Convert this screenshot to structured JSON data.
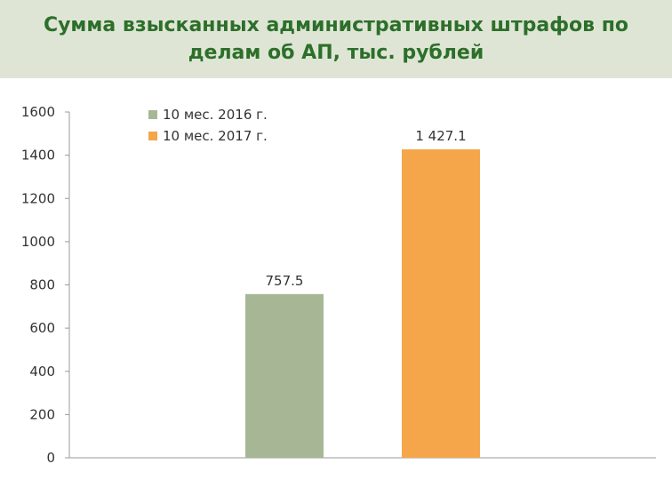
{
  "chart_data": {
    "type": "bar",
    "title_lines": [
      "Сумма взысканных административных штрафов по",
      "делам об АП, тыс. рублей"
    ],
    "categories": [
      ""
    ],
    "series": [
      {
        "name": "10 мес. 2016 г.",
        "values": [
          757.5
        ],
        "label": "757.5",
        "color": "#a7b796"
      },
      {
        "name": "10 мес. 2017 г.",
        "values": [
          1427.1
        ],
        "label": "1 427.1",
        "color": "#f5a54a"
      }
    ],
    "y_ticks": [
      "0",
      "200",
      "400",
      "600",
      "800",
      "1000",
      "1200",
      "1400",
      "1600"
    ],
    "ylim": [
      0,
      1600
    ],
    "xlabel": "",
    "ylabel": "",
    "grid": false,
    "legend_position": "top-left"
  }
}
